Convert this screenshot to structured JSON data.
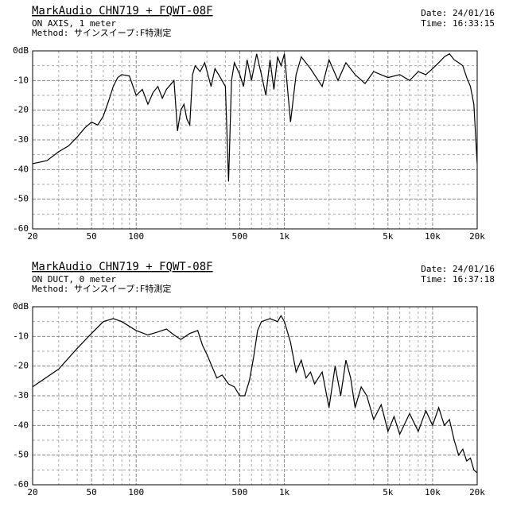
{
  "chart_data": [
    {
      "type": "line",
      "title": "MarkAudio CHN719 + FQWT-08F",
      "subtitle": [
        "ON AXIS, 1 meter",
        "Method: サインスイープ:F特測定"
      ],
      "date": "Date: 24/01/16",
      "time": "Time: 16:33:15",
      "log_x": true,
      "grid": true,
      "color": "#000000",
      "xlim": [
        20,
        20000
      ],
      "xticks": [
        20,
        50,
        100,
        500,
        {
          "value": 1000,
          "label": "1k"
        },
        {
          "value": 5000,
          "label": "5k"
        },
        {
          "value": 10000,
          "label": "10k"
        },
        {
          "value": 20000,
          "label": "20k"
        }
      ],
      "minor_xticks": [
        30,
        40,
        60,
        70,
        80,
        90,
        200,
        300,
        400,
        600,
        700,
        800,
        900,
        2000,
        3000,
        4000,
        6000,
        7000,
        8000,
        9000
      ],
      "ylim": [
        -60,
        0
      ],
      "yticks": [
        {
          "value": 0,
          "label": "0dB"
        },
        -10,
        -20,
        -30,
        -40,
        -50,
        -60
      ],
      "minor_yticks": [
        -5,
        -15,
        -25,
        -35,
        -45,
        -55
      ],
      "x": [
        20,
        25,
        30,
        35,
        40,
        45,
        50,
        55,
        60,
        65,
        70,
        75,
        80,
        90,
        100,
        110,
        120,
        130,
        140,
        150,
        160,
        180,
        190,
        200,
        210,
        220,
        230,
        240,
        250,
        270,
        290,
        320,
        340,
        370,
        400,
        420,
        440,
        460,
        500,
        530,
        560,
        600,
        650,
        700,
        750,
        800,
        850,
        900,
        950,
        1000,
        1100,
        1200,
        1300,
        1500,
        1800,
        2000,
        2300,
        2600,
        3000,
        3500,
        4000,
        5000,
        6000,
        7000,
        8000,
        9000,
        10000,
        11000,
        12000,
        13000,
        14000,
        15000,
        16000,
        17000,
        18000,
        19000,
        20000
      ],
      "values": [
        -38,
        -37,
        -34,
        -32,
        -29,
        -26,
        -24,
        -25,
        -22,
        -17,
        -12,
        -9,
        -8,
        -8.5,
        -15,
        -13,
        -18,
        -14,
        -12,
        -16,
        -13,
        -10,
        -27,
        -20,
        -18,
        -23,
        -25,
        -8,
        -5,
        -7,
        -4,
        -12,
        -6,
        -9,
        -12,
        -44,
        -10,
        -4,
        -8,
        -12,
        -3,
        -10,
        -1,
        -8,
        -15,
        -3,
        -13,
        -2,
        -5,
        -1,
        -24,
        -8,
        -2,
        -6,
        -12,
        -3,
        -10,
        -4,
        -8,
        -11,
        -7,
        -9,
        -8,
        -10,
        -7,
        -8,
        -6,
        -4,
        -2,
        -1,
        -3,
        -4,
        -5,
        -9,
        -12,
        -18,
        -38
      ]
    },
    {
      "type": "line",
      "title": "MarkAudio CHN719 + FQWT-08F",
      "subtitle": [
        "ON DUCT, 0 meter",
        "Method: サインスイープ:F特測定"
      ],
      "date": "Date: 24/01/16",
      "time": "Time: 16:37:18",
      "log_x": true,
      "grid": true,
      "color": "#000000",
      "xlim": [
        20,
        20000
      ],
      "xticks": [
        20,
        50,
        100,
        500,
        {
          "value": 1000,
          "label": "1k"
        },
        {
          "value": 5000,
          "label": "5k"
        },
        {
          "value": 10000,
          "label": "10k"
        },
        {
          "value": 20000,
          "label": "20k"
        }
      ],
      "minor_xticks": [
        30,
        40,
        60,
        70,
        80,
        90,
        200,
        300,
        400,
        600,
        700,
        800,
        900,
        2000,
        3000,
        4000,
        6000,
        7000,
        8000,
        9000
      ],
      "ylim": [
        -60,
        0
      ],
      "yticks": [
        {
          "value": 0,
          "label": "0dB"
        },
        -10,
        -20,
        -30,
        -40,
        -50,
        -60
      ],
      "minor_yticks": [
        -5,
        -15,
        -25,
        -35,
        -45,
        -55
      ],
      "x": [
        20,
        30,
        40,
        50,
        60,
        70,
        80,
        100,
        120,
        140,
        160,
        180,
        200,
        230,
        260,
        280,
        300,
        330,
        350,
        380,
        420,
        460,
        500,
        540,
        580,
        620,
        660,
        700,
        800,
        900,
        950,
        1000,
        1100,
        1200,
        1300,
        1400,
        1500,
        1600,
        1800,
        2000,
        2200,
        2400,
        2600,
        2800,
        3000,
        3300,
        3600,
        4000,
        4500,
        5000,
        5500,
        6000,
        7000,
        8000,
        9000,
        10000,
        11000,
        12000,
        13000,
        14000,
        15000,
        16000,
        17000,
        18000,
        19000,
        20000
      ],
      "values": [
        -27,
        -21,
        -14,
        -9,
        -5,
        -4,
        -5,
        -8,
        -9.5,
        -8.5,
        -7.5,
        -9.5,
        -11,
        -9,
        -8,
        -13,
        -16,
        -21,
        -24,
        -23,
        -26,
        -27,
        -30,
        -30,
        -25,
        -17,
        -8,
        -5,
        -4,
        -5,
        -3,
        -5,
        -12,
        -22,
        -18,
        -24,
        -22,
        -26,
        -22,
        -34,
        -20,
        -30,
        -18,
        -24,
        -34,
        -27,
        -30,
        -38,
        -33,
        -42,
        -37,
        -43,
        -36,
        -42,
        -35,
        -40,
        -34,
        -40,
        -38,
        -45,
        -50,
        -48,
        -52,
        -51,
        -55,
        -56
      ]
    }
  ]
}
